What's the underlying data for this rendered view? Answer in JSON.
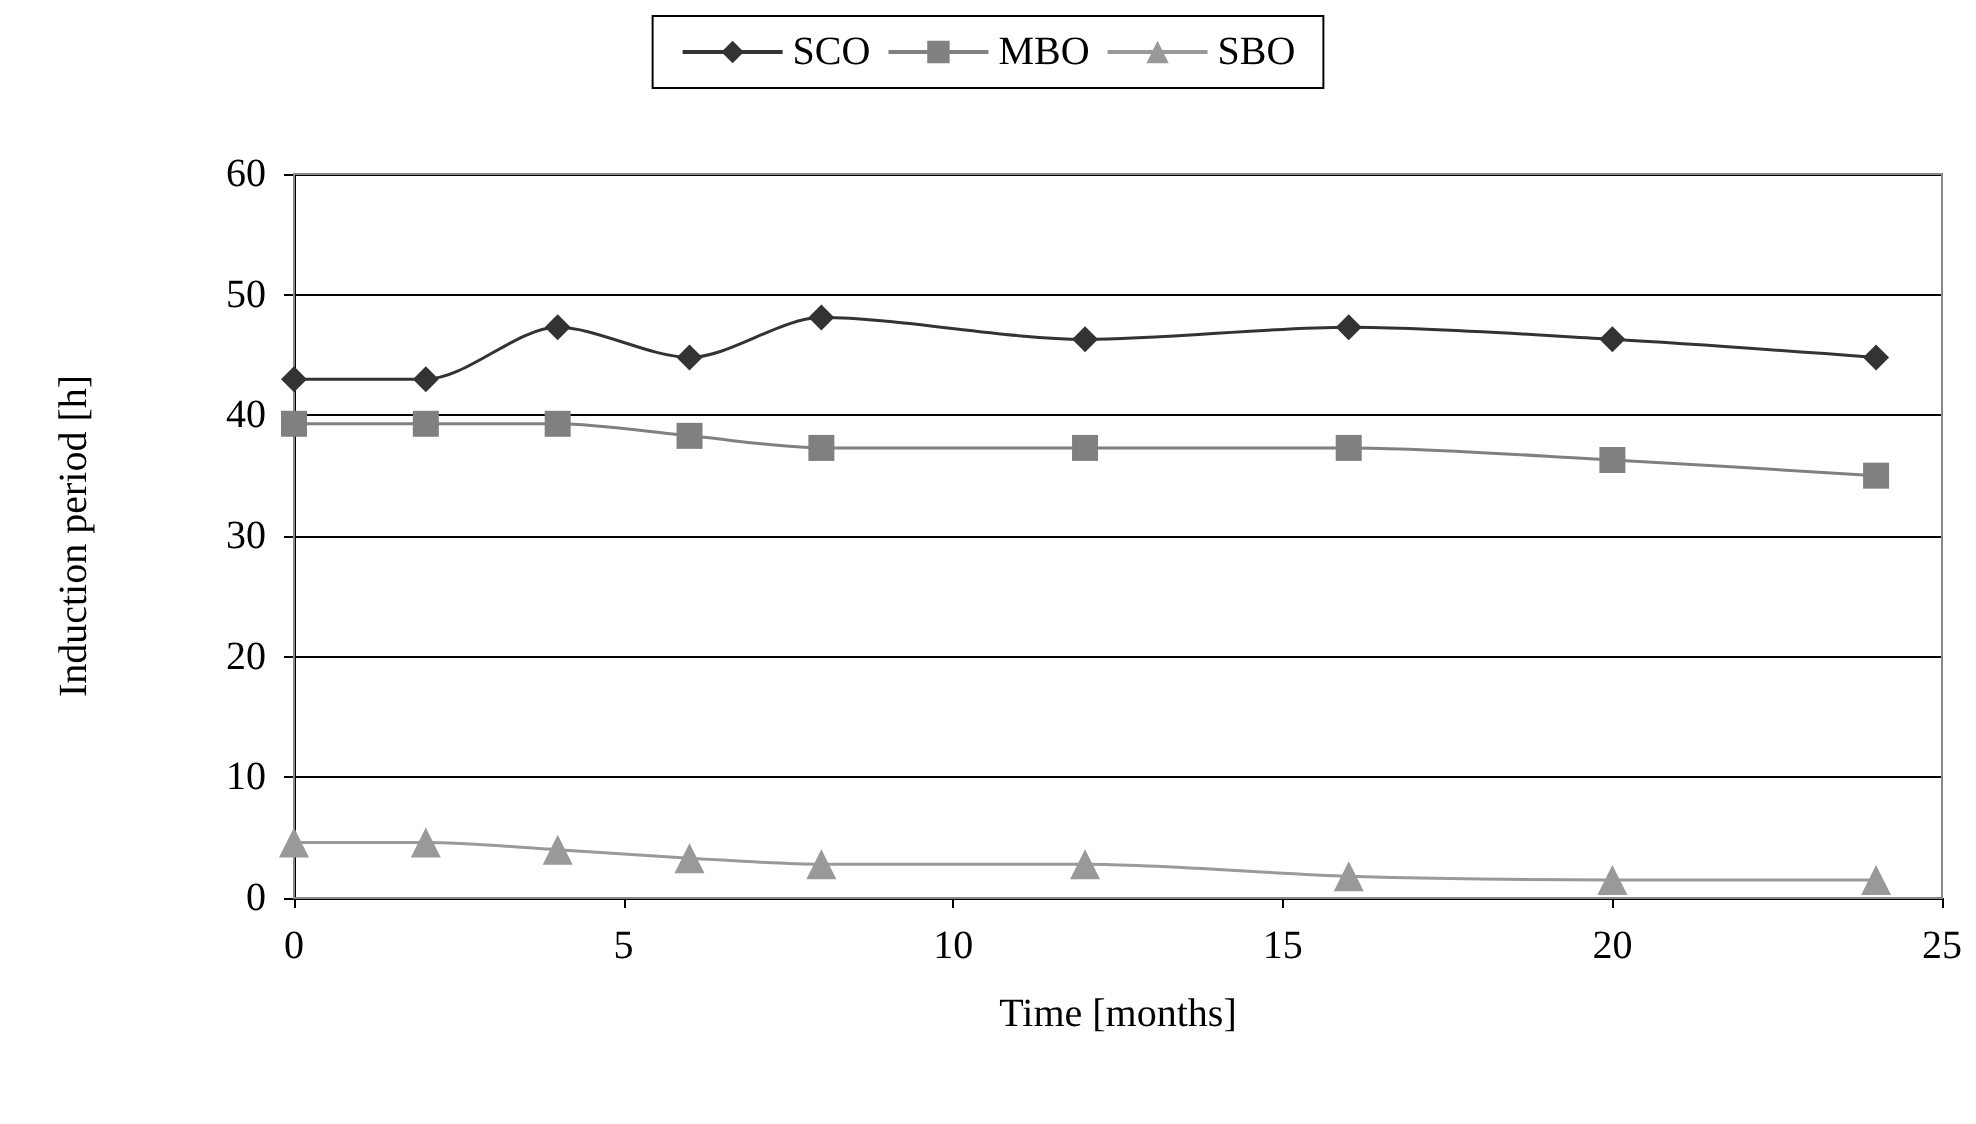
{
  "chart_data": {
    "type": "line",
    "xlabel": "Time [months]",
    "ylabel": "Induction period [h]",
    "xlim": [
      0,
      25
    ],
    "xticks": [
      0,
      5,
      10,
      15,
      20,
      25
    ],
    "ylim": [
      0,
      60
    ],
    "yticks": [
      0,
      10,
      20,
      30,
      40,
      50,
      60
    ],
    "grid": "y",
    "legend": "top",
    "line_style": "solid",
    "x": [
      0,
      2,
      4,
      6,
      8,
      12,
      16,
      20,
      24
    ],
    "series": [
      {
        "name": "SCO",
        "color": "#333333",
        "marker": "diamond",
        "values": [
          43,
          43,
          47.3,
          44.8,
          48.1,
          46.3,
          47.3,
          46.3,
          44.8
        ]
      },
      {
        "name": "MBO",
        "color": "#808080",
        "marker": "square",
        "values": [
          39.3,
          39.3,
          39.3,
          38.3,
          37.3,
          37.3,
          37.3,
          36.3,
          35
        ]
      },
      {
        "name": "SBO",
        "color": "#999999",
        "marker": "triangle",
        "values": [
          4.6,
          4.6,
          4,
          3.3,
          2.8,
          2.8,
          1.8,
          1.5,
          1.5
        ]
      }
    ]
  }
}
